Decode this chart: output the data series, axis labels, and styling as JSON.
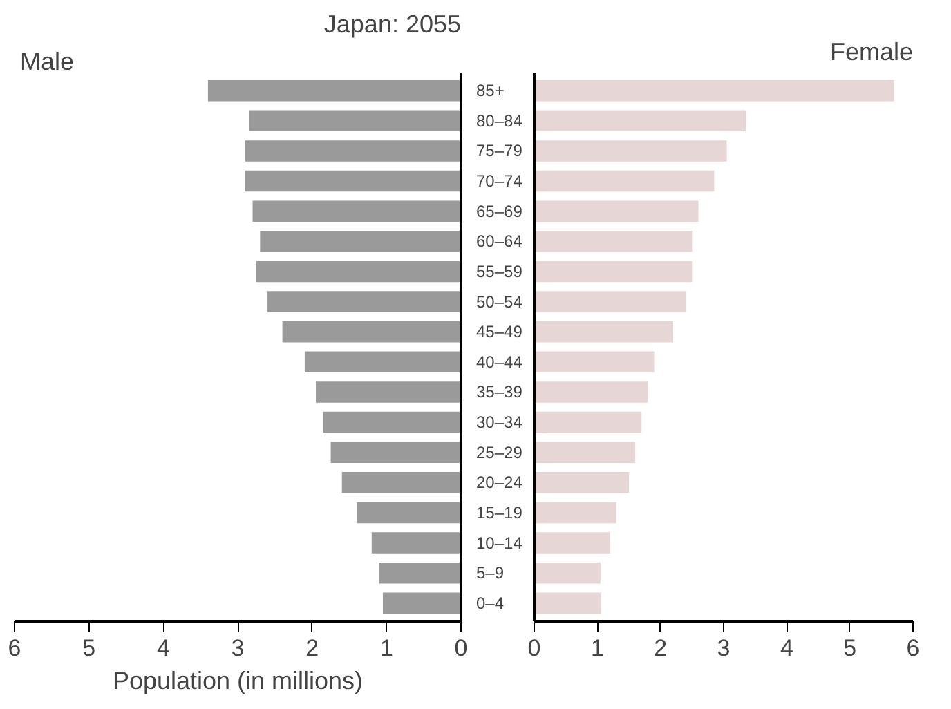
{
  "chart_data": [
    {
      "type": "bar",
      "orientation": "horizontal",
      "title": "Japan: 2055",
      "annotations": [
        "Male"
      ],
      "xlabel": "Population (in millions)",
      "categories": [
        "85+",
        "80–84",
        "75–79",
        "70–74",
        "65–69",
        "60–64",
        "55–59",
        "50–54",
        "45–49",
        "40–44",
        "35–39",
        "30–34",
        "25–29",
        "20–24",
        "15–19",
        "10–14",
        "5–9",
        "0–4"
      ],
      "values": [
        3.4,
        2.85,
        2.9,
        2.9,
        2.8,
        2.7,
        2.75,
        2.6,
        2.4,
        2.1,
        1.95,
        1.85,
        1.75,
        1.6,
        1.4,
        1.2,
        1.1,
        1.05
      ],
      "color": "#9a9a9a",
      "xlim": [
        6,
        0
      ],
      "xticks": [
        6,
        5,
        4,
        3,
        2,
        1,
        0
      ],
      "grid": false
    },
    {
      "type": "bar",
      "orientation": "horizontal",
      "title": "Female",
      "tick_labels": "x",
      "categories": [
        "85+",
        "80–84",
        "75–79",
        "70–74",
        "65–69",
        "60–64",
        "55–59",
        "50–54",
        "45–49",
        "40–44",
        "35–39",
        "30–34",
        "25–29",
        "20–24",
        "15–19",
        "10–14",
        "5–9",
        "0–4"
      ],
      "values": [
        5.7,
        3.35,
        3.05,
        2.85,
        2.6,
        2.5,
        2.5,
        2.4,
        2.2,
        1.9,
        1.8,
        1.7,
        1.6,
        1.5,
        1.3,
        1.2,
        1.05,
        1.05
      ],
      "color": "#e6d6d6",
      "xlim": [
        0,
        6
      ],
      "xticks": [
        0,
        1,
        2,
        3,
        4,
        5,
        6
      ],
      "grid": false
    }
  ]
}
